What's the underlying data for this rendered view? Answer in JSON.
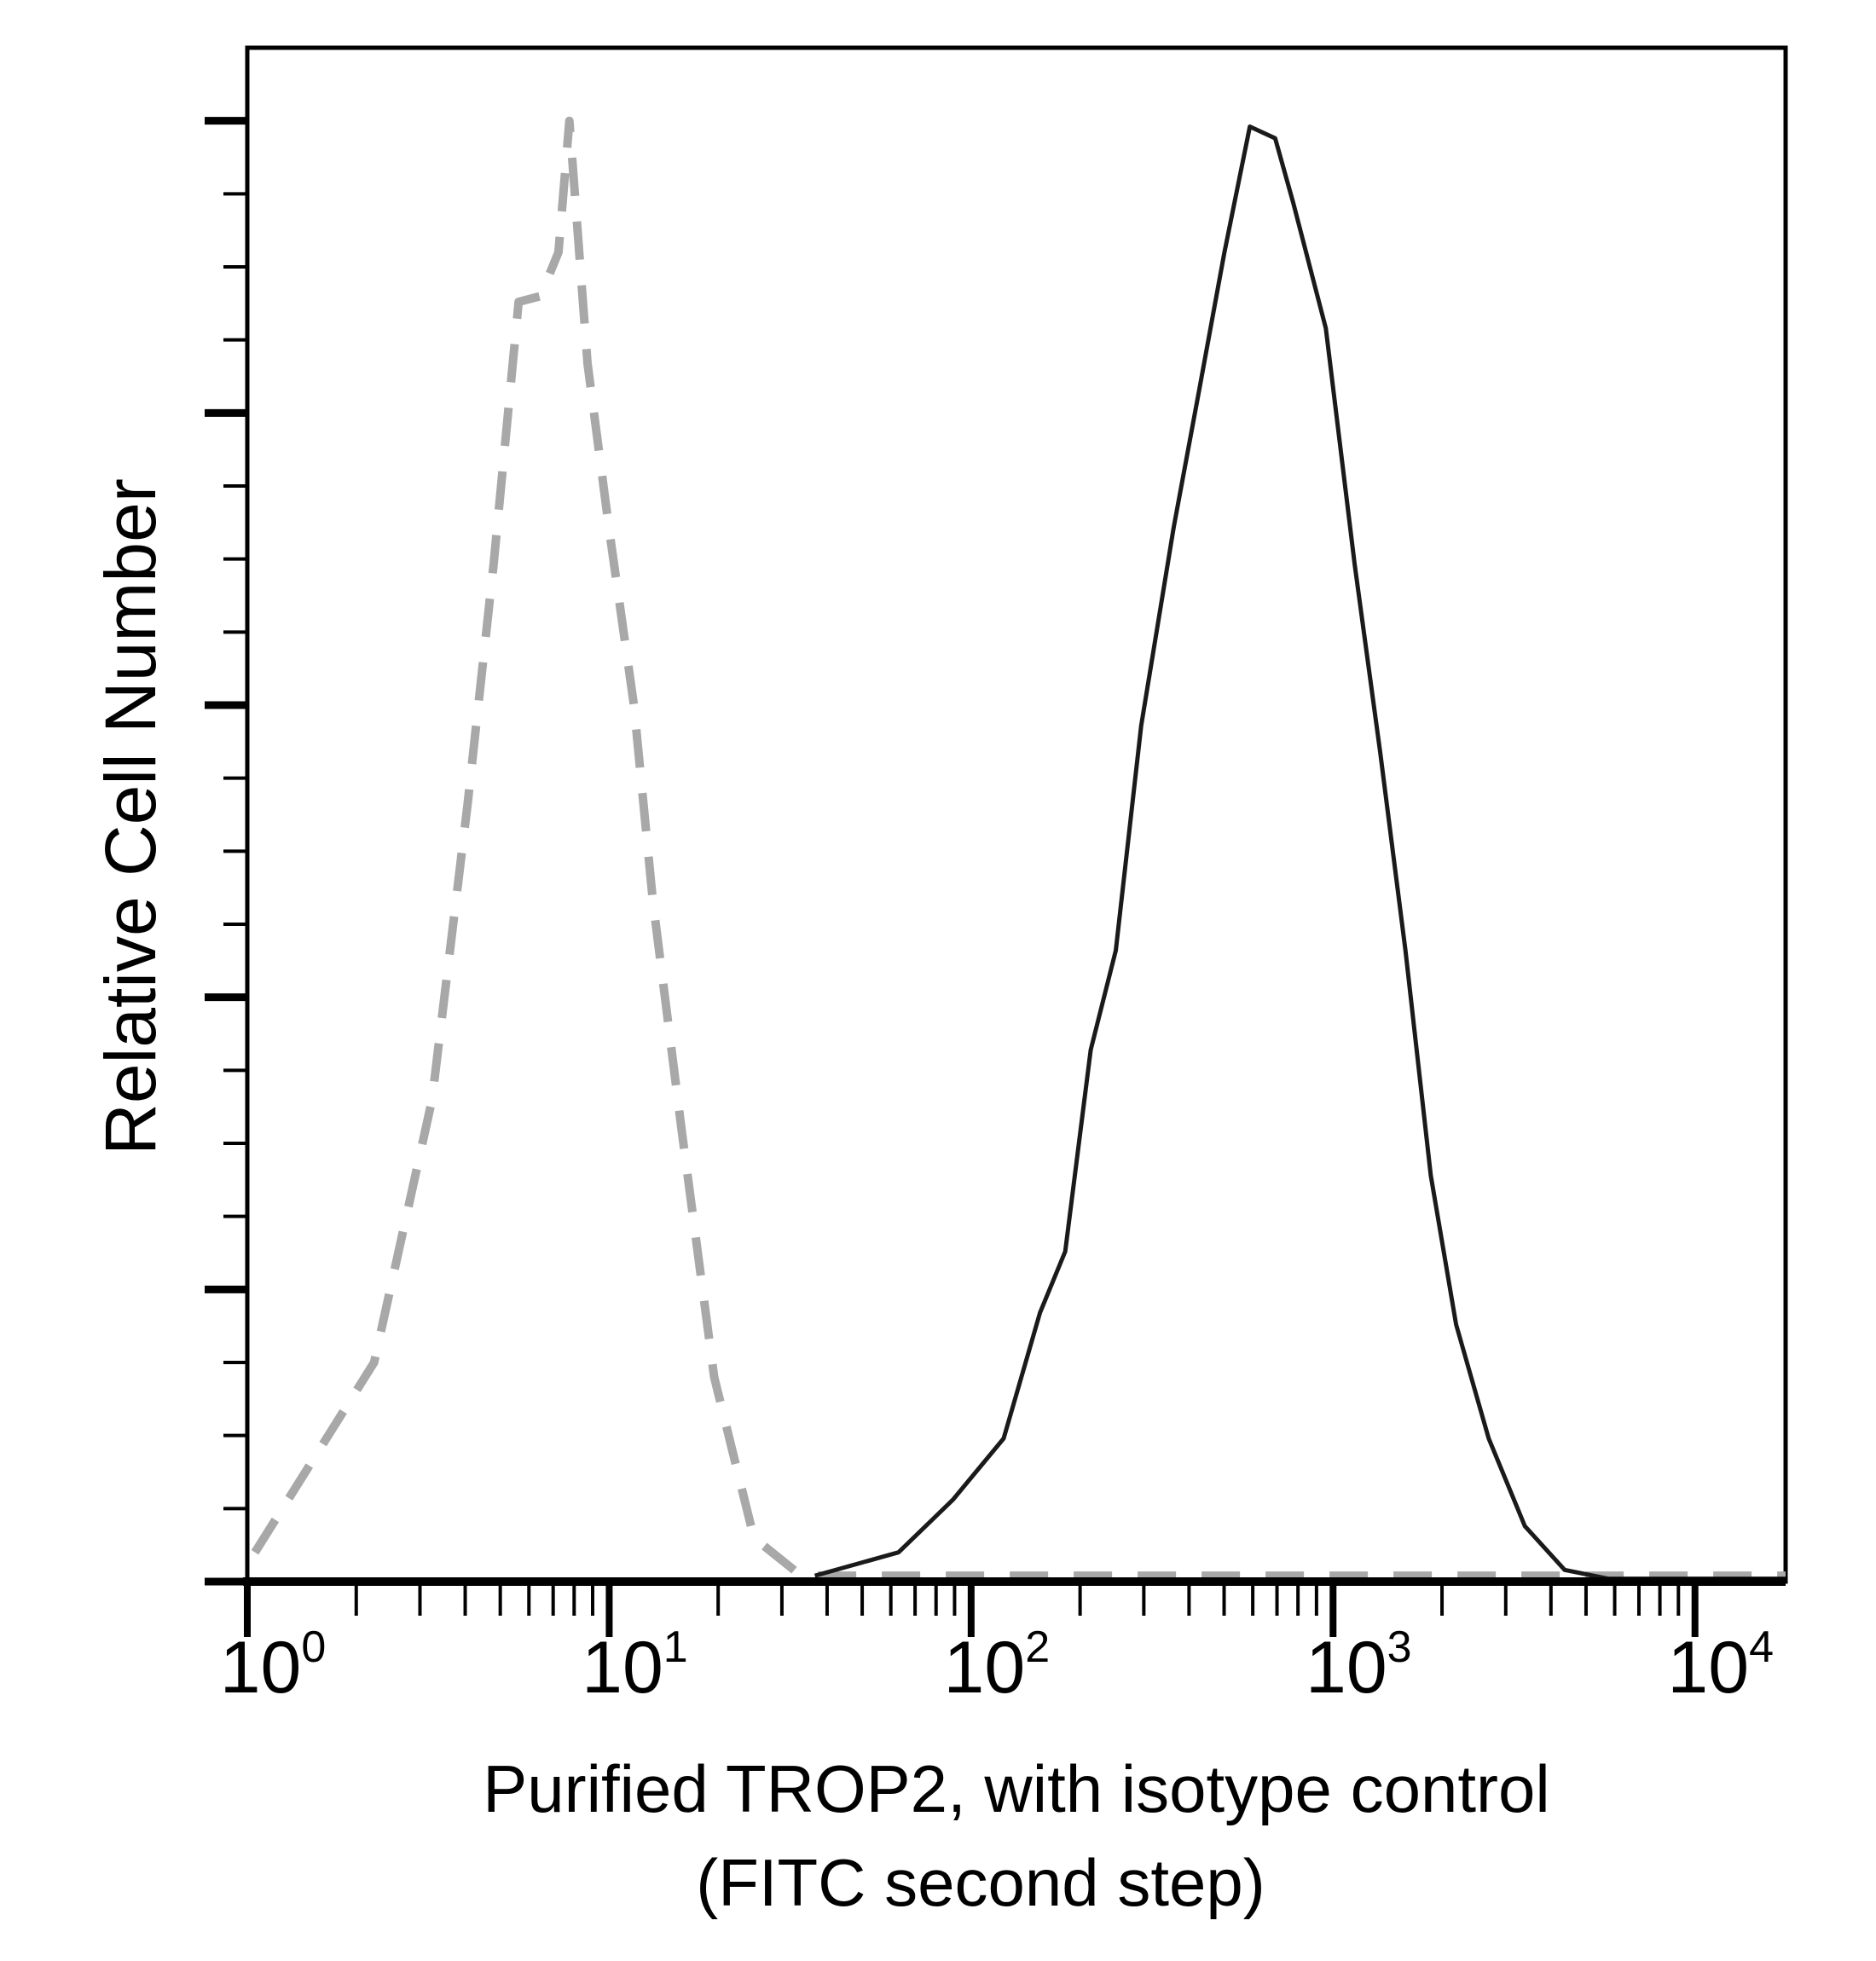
{
  "chart_data": {
    "type": "line",
    "title": "",
    "xlabel": "Purified TROP2, with isotype control",
    "xlabel_line2": "(FITC second step)",
    "ylabel": "Relative Cell Number",
    "xscale": "log",
    "xlim": [
      1,
      17800
    ],
    "ylim": [
      0,
      5.25
    ],
    "grid": false,
    "x_ticks": [
      {
        "base": "10",
        "exp": "0",
        "value": 1
      },
      {
        "base": "10",
        "exp": "1",
        "value": 10
      },
      {
        "base": "10",
        "exp": "2",
        "value": 100
      },
      {
        "base": "10",
        "exp": "3",
        "value": 1000
      },
      {
        "base": "10",
        "exp": "4",
        "value": 10000
      }
    ],
    "series": [
      {
        "style": "dashed",
        "color": "#a8a8a8",
        "x": [
          1.05,
          2.24,
          3.24,
          4.07,
          4.79,
          5.62,
          6.46,
          7.24,
          7.76,
          8.71,
          10,
          11.7,
          13.2,
          15.8,
          19.5,
          25.1,
          33.9,
          17800
        ],
        "y": [
          0.1,
          0.75,
          1.65,
          2.67,
          3.48,
          4.38,
          4.4,
          4.55,
          5.0,
          4.17,
          3.6,
          3.0,
          2.33,
          1.56,
          0.7,
          0.15,
          0.02,
          0.02
        ]
      },
      {
        "style": "solid",
        "color": "#1a1a1a",
        "x": [
          37,
          63,
          89,
          123,
          155,
          182,
          214,
          251,
          295,
          363,
          427,
          501,
          589,
          692,
          776,
          955,
          1148,
          1349,
          1585,
          1862,
          2188,
          2692,
          3388,
          4365,
          5754,
          17800
        ],
        "y": [
          0.02,
          0.1,
          0.28,
          0.49,
          0.92,
          1.13,
          1.82,
          2.16,
          2.93,
          3.61,
          4.08,
          4.55,
          4.98,
          4.94,
          4.72,
          4.29,
          3.48,
          2.84,
          2.16,
          1.39,
          0.88,
          0.49,
          0.19,
          0.04,
          0.01,
          0.01
        ]
      }
    ]
  }
}
